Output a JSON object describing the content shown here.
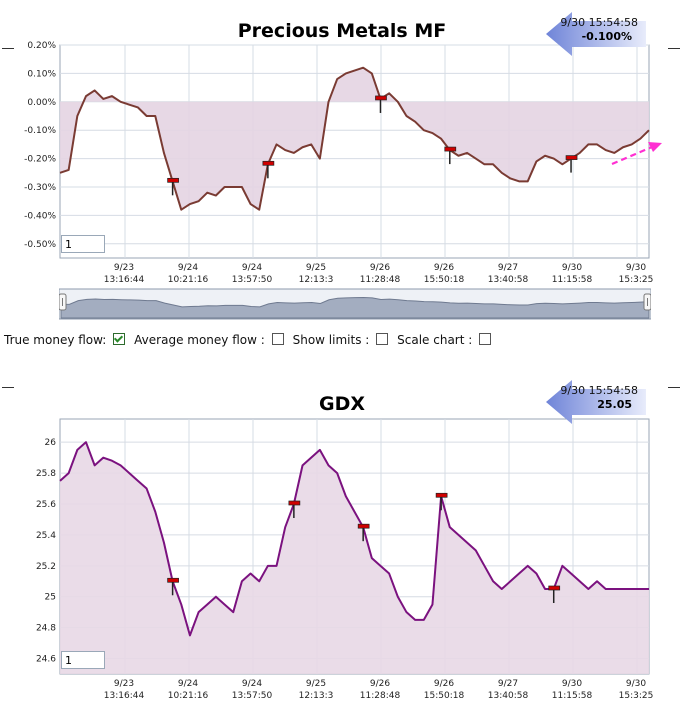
{
  "options": {
    "true_money_flow": "True money flow:",
    "average_money_flow": "Average money flow :",
    "show_limits": "Show limits :",
    "scale_chart": "Scale chart :",
    "true_money_flow_checked": true,
    "average_money_flow_checked": false,
    "show_limits_checked": false,
    "scale_chart_checked": false
  },
  "colors": {
    "fund_line": "#7a3b33",
    "fund_fill": "#e4d4e2",
    "gdx_line": "#7b127f",
    "gdx_fill": "#e8d8e6",
    "readout_arrow": "#8a9be0",
    "trend_arrow": "#ff2fd2",
    "marker": "#d00000"
  },
  "chart_data": [
    {
      "type": "line",
      "title": "Precious Metals MF",
      "readout": {
        "time": "9/30 15:54:58",
        "value": "-0.100%"
      },
      "zoom_value": "1",
      "ylim": [
        -0.55,
        0.2
      ],
      "yticks": [
        "0.20%",
        "0.10%",
        "0.00%",
        "-0.10%",
        "-0.20%",
        "-0.30%",
        "-0.40%",
        "-0.50%"
      ],
      "ytick_values": [
        0.2,
        0.1,
        0.0,
        -0.1,
        -0.2,
        -0.3,
        -0.4,
        -0.5
      ],
      "xticks": [
        {
          "date": "9/23",
          "time": "13:16:44"
        },
        {
          "date": "9/24",
          "time": "10:21:16"
        },
        {
          "date": "9/24",
          "time": "13:57:50"
        },
        {
          "date": "9/25",
          "time": "12:13:3"
        },
        {
          "date": "9/26",
          "time": "11:28:48"
        },
        {
          "date": "9/26",
          "time": "15:50:18"
        },
        {
          "date": "9/27",
          "time": "13:40:58"
        },
        {
          "date": "9/30",
          "time": "11:15:58"
        },
        {
          "date": "9/30",
          "time": "15:3:25"
        }
      ],
      "grid": true,
      "series": [
        {
          "values": [
            -0.25,
            -0.24,
            -0.05,
            0.02,
            0.04,
            0.01,
            0.02,
            0.0,
            -0.01,
            -0.02,
            -0.05,
            -0.05,
            -0.18,
            -0.28,
            -0.38,
            -0.36,
            -0.35,
            -0.32,
            -0.33,
            -0.3,
            -0.3,
            -0.3,
            -0.36,
            -0.38,
            -0.22,
            -0.15,
            -0.17,
            -0.18,
            -0.16,
            -0.15,
            -0.2,
            0.0,
            0.08,
            0.1,
            0.11,
            0.12,
            0.1,
            0.01,
            0.03,
            0.0,
            -0.05,
            -0.07,
            -0.1,
            -0.11,
            -0.13,
            -0.17,
            -0.19,
            -0.18,
            -0.2,
            -0.22,
            -0.22,
            -0.25,
            -0.27,
            -0.28,
            -0.28,
            -0.21,
            -0.19,
            -0.2,
            -0.22,
            -0.2,
            -0.18,
            -0.15,
            -0.15,
            -0.17,
            -0.18,
            -0.16,
            -0.15,
            -0.13,
            -0.1
          ]
        }
      ],
      "markers": [
        13,
        24,
        37,
        45,
        59
      ]
    },
    {
      "type": "line",
      "title": "GDX",
      "readout": {
        "time": "9/30 15:54:58",
        "value": "25.05"
      },
      "zoom_value": "1",
      "ylim": [
        24.5,
        26.15
      ],
      "yticks": [
        "26",
        "25.8",
        "25.6",
        "25.4",
        "25.2",
        "25",
        "24.8",
        "24.6"
      ],
      "ytick_values": [
        26,
        25.8,
        25.6,
        25.4,
        25.2,
        25.0,
        24.8,
        24.6
      ],
      "xticks": [
        {
          "date": "9/23",
          "time": "13:16:44"
        },
        {
          "date": "9/24",
          "time": "10:21:16"
        },
        {
          "date": "9/24",
          "time": "13:57:50"
        },
        {
          "date": "9/25",
          "time": "12:13:3"
        },
        {
          "date": "9/26",
          "time": "11:28:48"
        },
        {
          "date": "9/26",
          "time": "15:50:18"
        },
        {
          "date": "9/27",
          "time": "13:40:58"
        },
        {
          "date": "9/30",
          "time": "11:15:58"
        },
        {
          "date": "9/30",
          "time": "15:3:25"
        }
      ],
      "grid": true,
      "series": [
        {
          "values": [
            25.75,
            25.8,
            25.95,
            26.0,
            25.85,
            25.9,
            25.88,
            25.85,
            25.8,
            25.75,
            25.7,
            25.55,
            25.35,
            25.1,
            24.95,
            24.75,
            24.9,
            24.95,
            25.0,
            24.95,
            24.9,
            25.1,
            25.15,
            25.1,
            25.2,
            25.2,
            25.45,
            25.6,
            25.85,
            25.9,
            25.95,
            25.85,
            25.8,
            25.65,
            25.55,
            25.45,
            25.25,
            25.2,
            25.15,
            25.0,
            24.9,
            24.85,
            24.85,
            24.95,
            25.65,
            25.45,
            25.4,
            25.35,
            25.3,
            25.2,
            25.1,
            25.05,
            25.1,
            25.15,
            25.2,
            25.15,
            25.05,
            25.05,
            25.2,
            25.15,
            25.1,
            25.05,
            25.1,
            25.05,
            25.05,
            25.05,
            25.05,
            25.05,
            25.05
          ]
        }
      ],
      "markers": [
        13,
        27,
        35,
        44,
        57
      ]
    }
  ]
}
